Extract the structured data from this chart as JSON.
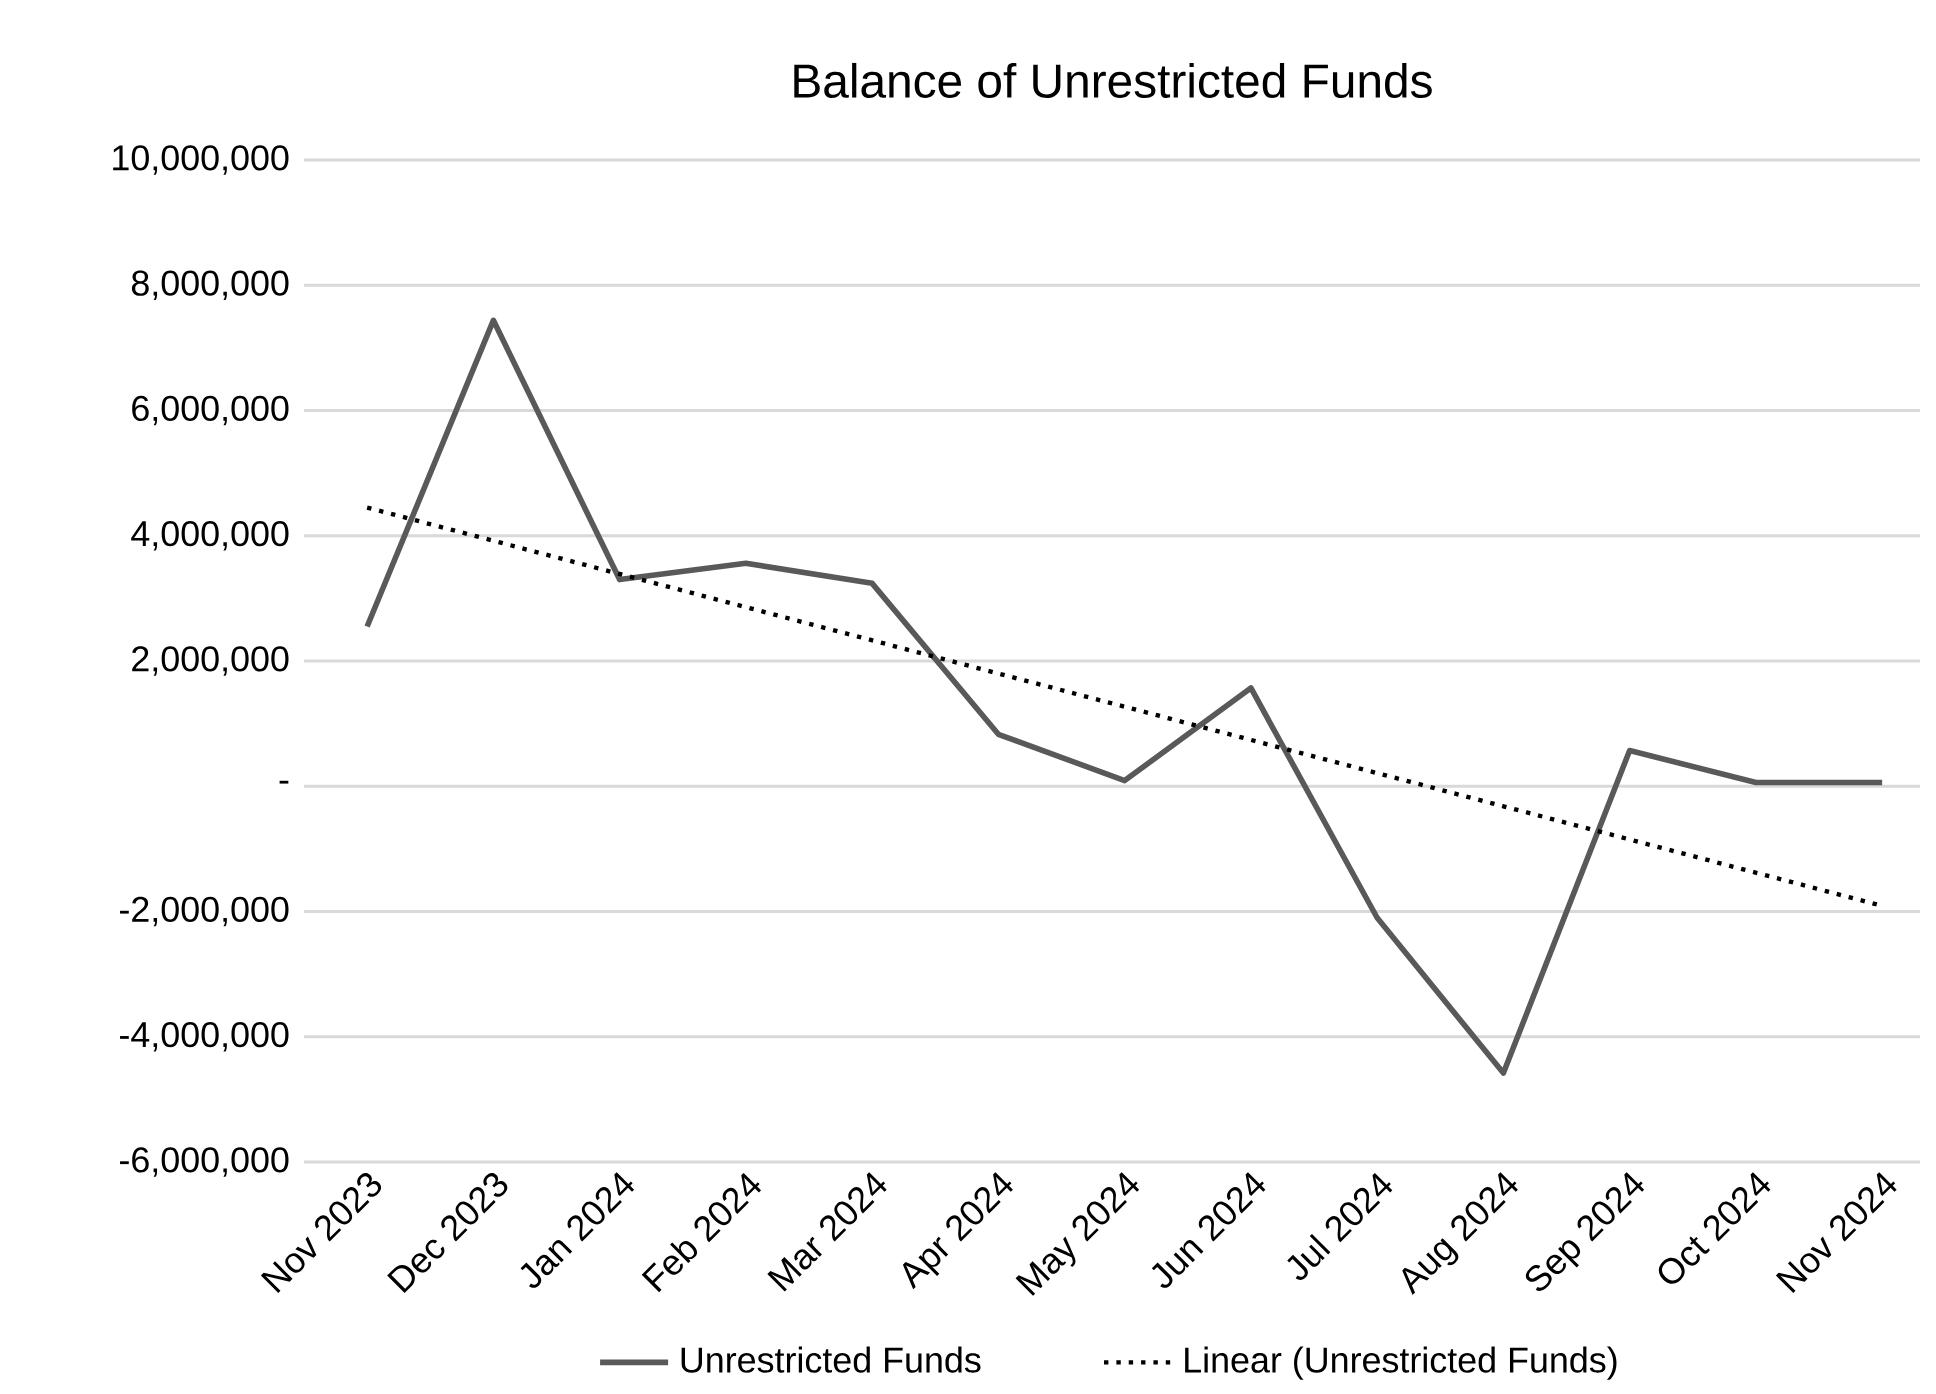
{
  "chart_data": {
    "type": "line",
    "title": "Balance of Unrestricted Funds",
    "categories": [
      "Nov 2023",
      "Dec 2023",
      "Jan 2024",
      "Feb 2024",
      "Mar 2024",
      "Apr 2024",
      "May 2024",
      "Jun 2024",
      "Jul 2024",
      "Aug 2024",
      "Sep 2024",
      "Oct 2024",
      "Nov 2024"
    ],
    "series": [
      {
        "name": "Unrestricted Funds",
        "color": "#595959",
        "line_style": "solid",
        "values": [
          2550000,
          7440000,
          3300000,
          3560000,
          3240000,
          830000,
          90000,
          1570000,
          -2100000,
          -4580000,
          570000,
          60000,
          60000
        ]
      },
      {
        "name": "Linear (Unrestricted Funds)",
        "color": "#000000",
        "line_style": "dotted",
        "values": [
          4450000,
          3920000,
          3390000,
          2860000,
          2330000,
          1800000,
          1270000,
          740000,
          210000,
          -320000,
          -850000,
          -1380000,
          -1910000
        ]
      }
    ],
    "ylim": [
      -6000000,
      10000000
    ],
    "yticks": [
      {
        "value": -6000000,
        "label": "-6,000,000"
      },
      {
        "value": -4000000,
        "label": "-4,000,000"
      },
      {
        "value": -2000000,
        "label": "-2,000,000"
      },
      {
        "value": 0,
        "label": "-"
      },
      {
        "value": 2000000,
        "label": "2,000,000"
      },
      {
        "value": 4000000,
        "label": "4,000,000"
      },
      {
        "value": 6000000,
        "label": "6,000,000"
      },
      {
        "value": 8000000,
        "label": "8,000,000"
      },
      {
        "value": 10000000,
        "label": "10,000,000"
      }
    ],
    "grid": "y",
    "legend": "bottom",
    "marker": "none"
  }
}
